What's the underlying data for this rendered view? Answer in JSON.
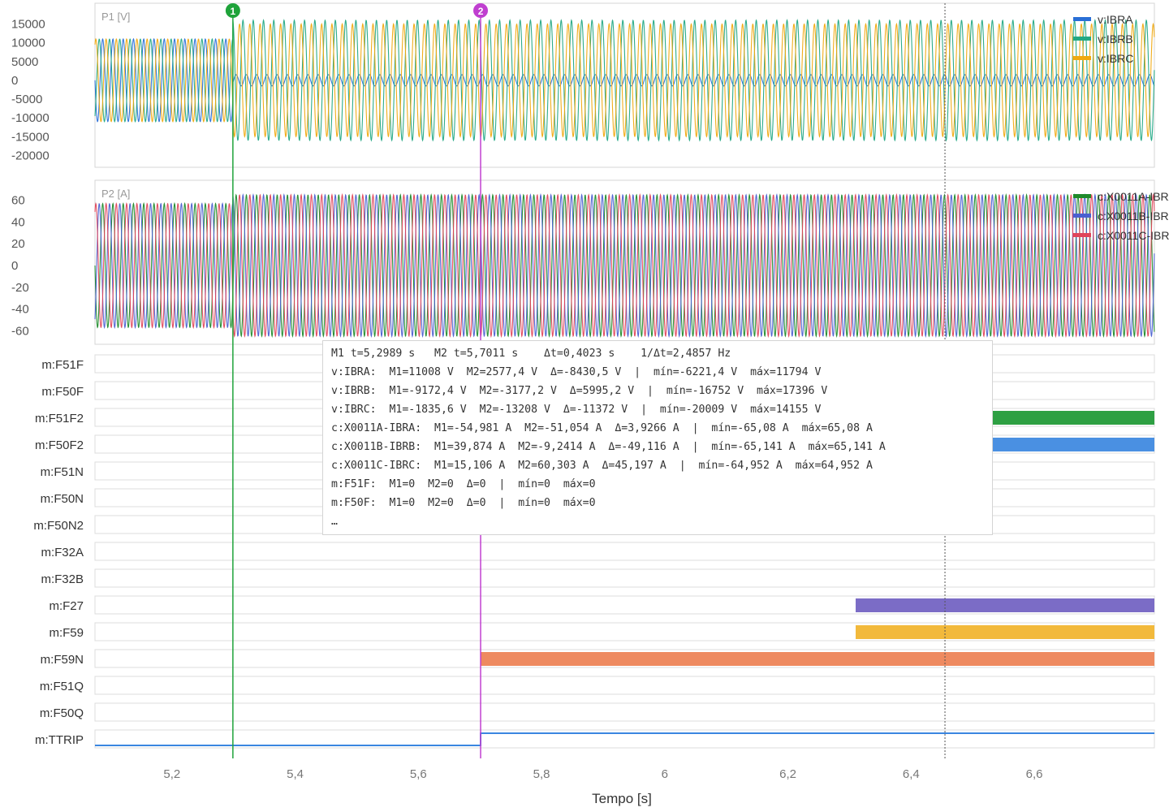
{
  "chart_data": {
    "type": "line",
    "xlabel": "Tempo [s]",
    "x_ticks": [
      "5,2",
      "5,4",
      "5,6",
      "5,8",
      "6",
      "6,2",
      "6,4",
      "6,6"
    ],
    "x_tick_values": [
      5.2,
      5.4,
      5.6,
      5.8,
      6.0,
      6.2,
      6.4,
      6.6
    ],
    "xlim": [
      5.075,
      6.795
    ],
    "markers": [
      {
        "label": "1",
        "t": 5.2989,
        "color": "#1fa33a"
      },
      {
        "label": "2",
        "t": 5.7011,
        "color": "#c03fd0"
      }
    ],
    "cursor_t": 6.455,
    "panels": [
      {
        "title": "P1 [V]",
        "ylim": [
          -21000,
          17500
        ],
        "y_ticks": [
          "15000",
          "10000",
          "5000",
          "0",
          "-5000",
          "-10000",
          "-15000",
          "-20000"
        ],
        "y_tick_values": [
          15000,
          10000,
          5000,
          0,
          -5000,
          -10000,
          -15000,
          -20000
        ],
        "series": [
          {
            "name": "v:IBRA",
            "color": "#2a6fd6",
            "amplitude_before": 11000,
            "amplitude_after": 1500
          },
          {
            "name": "v:IBRB",
            "color": "#22a884",
            "amplitude_before": 11000,
            "amplitude_after": 16000
          },
          {
            "name": "v:IBRC",
            "color": "#f0a910",
            "amplitude_before": 11000,
            "amplitude_after": 15000
          }
        ]
      },
      {
        "title": "P2 [A]",
        "ylim": [
          -65,
          68
        ],
        "y_ticks": [
          "60",
          "40",
          "20",
          "0",
          "-20",
          "-40",
          "-60"
        ],
        "y_tick_values": [
          60,
          40,
          20,
          0,
          -20,
          -40,
          -60
        ],
        "series": [
          {
            "name": "c:X0011A-IBRA",
            "color": "#1f8a2b",
            "amplitude_before": 57,
            "amplitude_after": 65
          },
          {
            "name": "c:X0011B-IBRB",
            "color": "#4a5fd0",
            "amplitude_before": 57,
            "amplitude_after": 65
          },
          {
            "name": "c:X0011C-IBRC",
            "color": "#e0445a",
            "amplitude_before": 57,
            "amplitude_after": 65
          }
        ]
      }
    ],
    "digital_channels": [
      {
        "name": "m:F51F",
        "active": []
      },
      {
        "name": "m:F50F",
        "active": []
      },
      {
        "name": "m:F51F2",
        "active": [
          [
            6.31,
            6.795
          ]
        ],
        "color": "#2ea043"
      },
      {
        "name": "m:F50F2",
        "active": [
          [
            6.31,
            6.795
          ]
        ],
        "color": "#4a90e2"
      },
      {
        "name": "m:F51N",
        "active": []
      },
      {
        "name": "m:F50N",
        "active": []
      },
      {
        "name": "m:F50N2",
        "active": []
      },
      {
        "name": "m:F32A",
        "active": []
      },
      {
        "name": "m:F32B",
        "active": []
      },
      {
        "name": "m:F27",
        "active": [
          [
            6.31,
            6.795
          ]
        ],
        "color": "#7b6cc6"
      },
      {
        "name": "m:F59",
        "active": [
          [
            6.31,
            6.795
          ]
        ],
        "color": "#f2b93b"
      },
      {
        "name": "m:F59N",
        "active": [
          [
            5.7011,
            6.795
          ]
        ],
        "color": "#ee8a60"
      },
      {
        "name": "m:F51Q",
        "active": []
      },
      {
        "name": "m:F50Q",
        "active": []
      },
      {
        "name": "m:TTRIP",
        "active": [
          [
            5.7011,
            6.795
          ]
        ],
        "color": "#3a86e0",
        "style": "step"
      }
    ]
  },
  "readout": [
    "M1 t=5,2989 s   M2 t=5,7011 s    Δt=0,4023 s    1/Δt=2,4857 Hz",
    "v:IBRA:  M1=11008 V  M2=2577,4 V  Δ=-8430,5 V  |  mín=-6221,4 V  máx=11794 V",
    "v:IBRB:  M1=-9172,4 V  M2=-3177,2 V  Δ=5995,2 V  |  mín=-16752 V  máx=17396 V",
    "v:IBRC:  M1=-1835,6 V  M2=-13208 V  Δ=-11372 V  |  mín=-20009 V  máx=14155 V",
    "c:X0011A-IBRA:  M1=-54,981 A  M2=-51,054 A  Δ=3,9266 A  |  mín=-65,08 A  máx=65,08 A",
    "c:X0011B-IBRB:  M1=39,874 A  M2=-9,2414 A  Δ=-49,116 A  |  mín=-65,141 A  máx=65,141 A",
    "c:X0011C-IBRC:  M1=15,106 A  M2=60,303 A  Δ=45,197 A  |  mín=-64,952 A  máx=64,952 A",
    "m:F51F:  M1=0  M2=0  Δ=0  |  mín=0  máx=0",
    "m:F50F:  M1=0  M2=0  Δ=0  |  mín=0  máx=0",
    "…"
  ]
}
